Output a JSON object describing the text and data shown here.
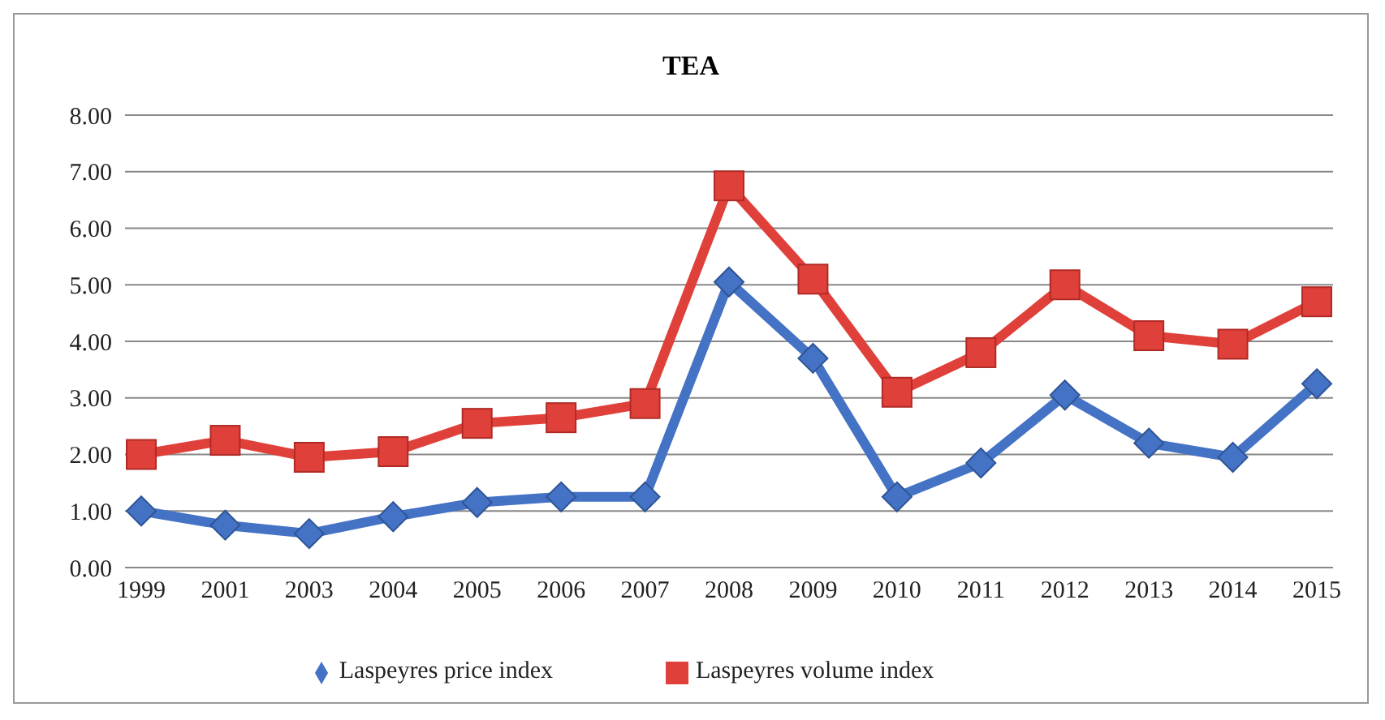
{
  "chart_data": {
    "type": "line",
    "title": "TEA",
    "categories": [
      "1999",
      "2001",
      "2003",
      "2004",
      "2005",
      "2006",
      "2007",
      "2008",
      "2009",
      "2010",
      "2011",
      "2012",
      "2013",
      "2014",
      "2015"
    ],
    "series": [
      {
        "name": "Laspeyres price index",
        "color": "#4472c4",
        "marker": "diamond",
        "values": [
          1.0,
          0.75,
          0.6,
          0.9,
          1.15,
          1.25,
          1.25,
          5.05,
          3.7,
          1.25,
          1.85,
          3.05,
          2.2,
          1.95,
          3.25
        ]
      },
      {
        "name": "Laspeyres volume index",
        "color": "#e0403a",
        "marker": "square",
        "values": [
          2.0,
          2.25,
          1.95,
          2.05,
          2.55,
          2.65,
          2.9,
          6.75,
          5.1,
          3.1,
          3.8,
          5.0,
          4.1,
          3.95,
          4.7
        ]
      }
    ],
    "ylim": [
      0,
      8
    ],
    "yticks": [
      {
        "value": 0,
        "label": "0.00"
      },
      {
        "value": 1,
        "label": "1.00"
      },
      {
        "value": 2,
        "label": "2.00"
      },
      {
        "value": 3,
        "label": "3.00"
      },
      {
        "value": 4,
        "label": "4.00"
      },
      {
        "value": 5,
        "label": "5.00"
      },
      {
        "value": 6,
        "label": "6.00"
      },
      {
        "value": 7,
        "label": "7.00"
      },
      {
        "value": 8,
        "label": "8.00"
      }
    ],
    "grid": "y",
    "legend": "bottom",
    "line_style": "solid"
  }
}
